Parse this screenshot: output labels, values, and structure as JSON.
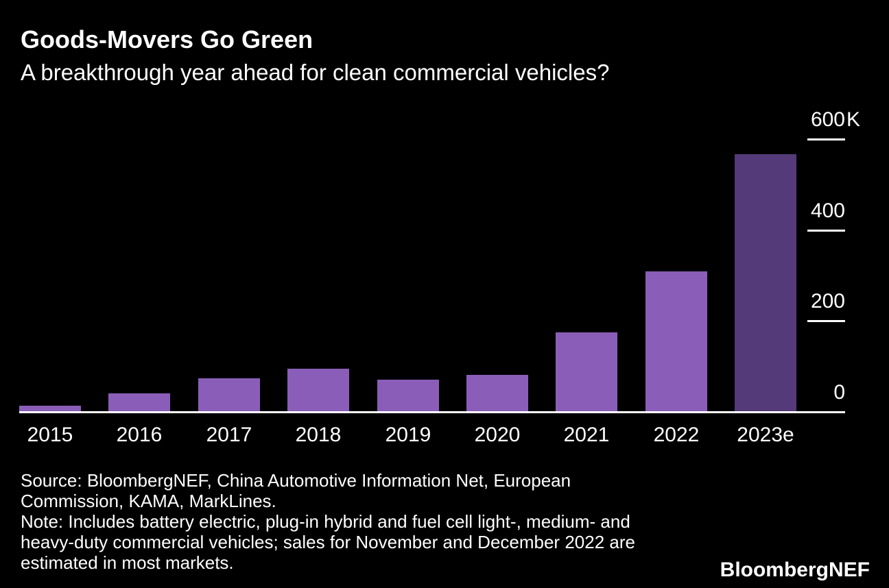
{
  "header": {
    "title": "Goods-Movers Go Green",
    "subtitle": "A breakthrough year ahead for clean commercial vehicles?"
  },
  "chart_data": {
    "type": "bar",
    "title": "Goods-Movers Go Green",
    "subtitle": "A breakthrough year ahead for clean commercial vehicles?",
    "categories": [
      "2015",
      "2016",
      "2017",
      "2018",
      "2019",
      "2020",
      "2021",
      "2022",
      "2023e"
    ],
    "values": [
      12,
      39,
      72,
      93,
      69,
      80,
      174,
      308,
      565
    ],
    "unit": "thousand vehicles (K)",
    "ylim": [
      0,
      600
    ],
    "yticks": [
      {
        "label": "600",
        "suffix": "K",
        "value": 600
      },
      {
        "label": "400",
        "suffix": "",
        "value": 400
      },
      {
        "label": "200",
        "suffix": "",
        "value": 200
      },
      {
        "label": "0",
        "suffix": "",
        "value": 0
      }
    ],
    "grid": "off",
    "legend": "none",
    "colors": {
      "background": "#000000",
      "text": "#ffffff",
      "bar": "#8a5eb8",
      "highlight_bar": "#543a78",
      "axis": "#ffffff"
    },
    "highlight_category": "2023e"
  },
  "footer": {
    "source_lines": [
      "Source: BloombergNEF, China Automotive Information Net, European",
      "Commission, KAMA, MarkLines.",
      "Note: Includes battery electric, plug-in hybrid and fuel cell light-, medium- and",
      "heavy-duty commercial vehicles; sales for November and December 2022 are",
      "estimated in most markets."
    ],
    "logo": "BloombergNEF"
  }
}
